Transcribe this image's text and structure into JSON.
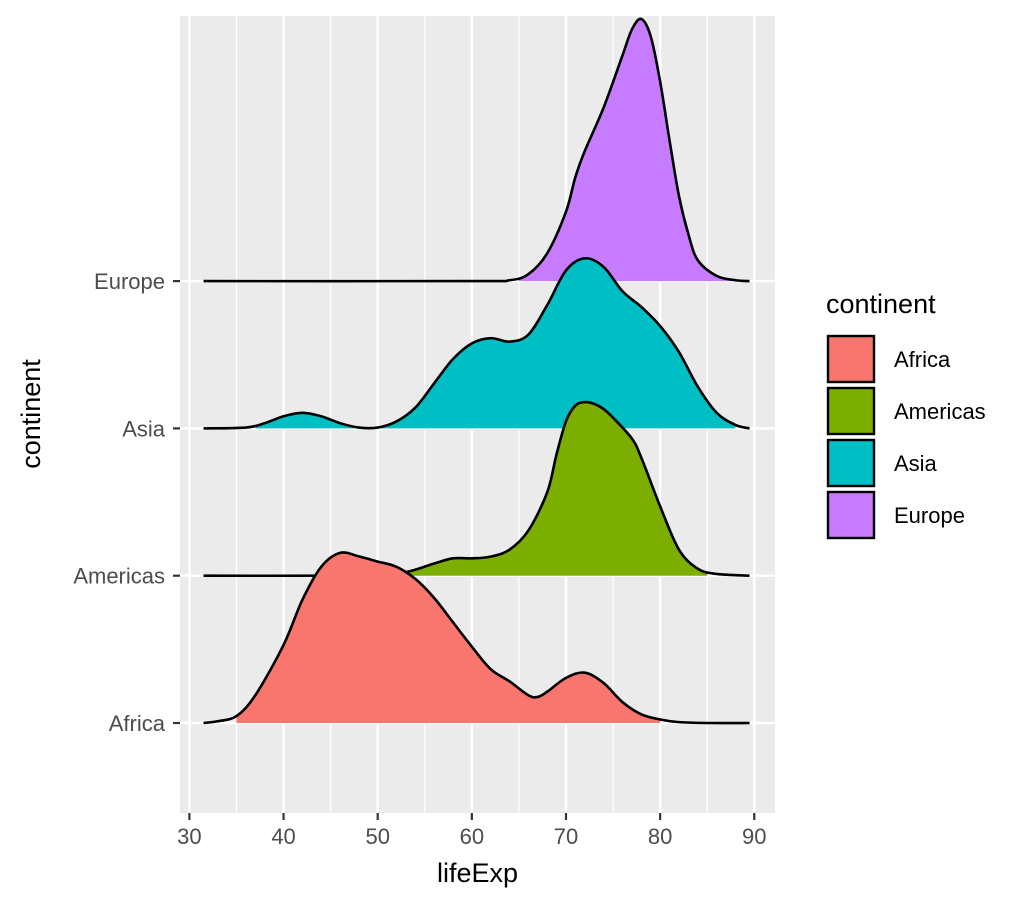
{
  "chart_data": {
    "type": "ridgeline",
    "xlabel": "lifeExp",
    "ylabel": "continent",
    "xlim": [
      29,
      92.2
    ],
    "x_ticks": [
      30,
      40,
      50,
      60,
      70,
      80,
      90
    ],
    "x_range": [
      31.5,
      89.5
    ],
    "ridge_height_units": 1.79,
    "legend": {
      "title": "continent",
      "position": "right"
    },
    "grid": true,
    "series": [
      {
        "name": "Africa",
        "color": "#F8766D",
        "fill_range": [
          35,
          80
        ],
        "density": [
          [
            31.5,
            0.0
          ],
          [
            33,
            0.01
          ],
          [
            35,
            0.04
          ],
          [
            37,
            0.16
          ],
          [
            40,
            0.45
          ],
          [
            42,
            0.71
          ],
          [
            44,
            0.9
          ],
          [
            46,
            0.98
          ],
          [
            48,
            0.96
          ],
          [
            50,
            0.93
          ],
          [
            52,
            0.9
          ],
          [
            54,
            0.83
          ],
          [
            56,
            0.72
          ],
          [
            58,
            0.58
          ],
          [
            60,
            0.44
          ],
          [
            62,
            0.31
          ],
          [
            64,
            0.24
          ],
          [
            66,
            0.16
          ],
          [
            67,
            0.15
          ],
          [
            68,
            0.18
          ],
          [
            70,
            0.26
          ],
          [
            72,
            0.29
          ],
          [
            74,
            0.23
          ],
          [
            76,
            0.12
          ],
          [
            78,
            0.05
          ],
          [
            80,
            0.02
          ],
          [
            82,
            0.005
          ],
          [
            85,
            0.0
          ],
          [
            89.5,
            0.0
          ]
        ]
      },
      {
        "name": "Americas",
        "color": "#7CAE00",
        "fill_range": [
          53,
          85
        ],
        "density": [
          [
            31.5,
            0.0
          ],
          [
            45,
            0.0
          ],
          [
            50,
            0.005
          ],
          [
            53,
            0.02
          ],
          [
            56,
            0.07
          ],
          [
            58,
            0.1
          ],
          [
            60,
            0.1
          ],
          [
            62,
            0.11
          ],
          [
            64,
            0.15
          ],
          [
            66,
            0.26
          ],
          [
            68,
            0.48
          ],
          [
            69,
            0.7
          ],
          [
            70,
            0.89
          ],
          [
            71,
            0.98
          ],
          [
            72,
            1.0
          ],
          [
            73,
            0.99
          ],
          [
            74,
            0.96
          ],
          [
            75,
            0.91
          ],
          [
            77,
            0.79
          ],
          [
            78,
            0.68
          ],
          [
            80,
            0.4
          ],
          [
            82,
            0.15
          ],
          [
            84,
            0.04
          ],
          [
            86,
            0.01
          ],
          [
            89.5,
            0.0
          ]
        ]
      },
      {
        "name": "Asia",
        "color": "#00BFC4",
        "fill_range": [
          37,
          88
        ],
        "density": [
          [
            31.5,
            0.0
          ],
          [
            36,
            0.005
          ],
          [
            38,
            0.03
          ],
          [
            40,
            0.07
          ],
          [
            42,
            0.09
          ],
          [
            44,
            0.07
          ],
          [
            46,
            0.03
          ],
          [
            48,
            0.005
          ],
          [
            50,
            0.005
          ],
          [
            52,
            0.04
          ],
          [
            54,
            0.12
          ],
          [
            56,
            0.26
          ],
          [
            58,
            0.4
          ],
          [
            60,
            0.49
          ],
          [
            62,
            0.52
          ],
          [
            64,
            0.5
          ],
          [
            66,
            0.54
          ],
          [
            68,
            0.71
          ],
          [
            70,
            0.91
          ],
          [
            72,
            0.98
          ],
          [
            74,
            0.93
          ],
          [
            76,
            0.79
          ],
          [
            78,
            0.7
          ],
          [
            80,
            0.59
          ],
          [
            82,
            0.44
          ],
          [
            84,
            0.24
          ],
          [
            86,
            0.09
          ],
          [
            88,
            0.02
          ],
          [
            89.5,
            0.0
          ]
        ]
      },
      {
        "name": "Europe",
        "color": "#C77CFF",
        "fill_range": [
          65,
          88
        ],
        "density": [
          [
            31.5,
            0.0
          ],
          [
            60,
            0.0
          ],
          [
            64,
            0.005
          ],
          [
            66,
            0.04
          ],
          [
            68,
            0.16
          ],
          [
            70,
            0.4
          ],
          [
            71,
            0.6
          ],
          [
            72,
            0.75
          ],
          [
            74,
            1.0
          ],
          [
            76,
            1.3
          ],
          [
            77,
            1.45
          ],
          [
            78,
            1.51
          ],
          [
            79,
            1.41
          ],
          [
            80,
            1.15
          ],
          [
            81,
            0.81
          ],
          [
            82,
            0.49
          ],
          [
            83,
            0.27
          ],
          [
            84,
            0.12
          ],
          [
            86,
            0.03
          ],
          [
            88,
            0.005
          ],
          [
            89.5,
            0.0
          ]
        ]
      }
    ]
  }
}
